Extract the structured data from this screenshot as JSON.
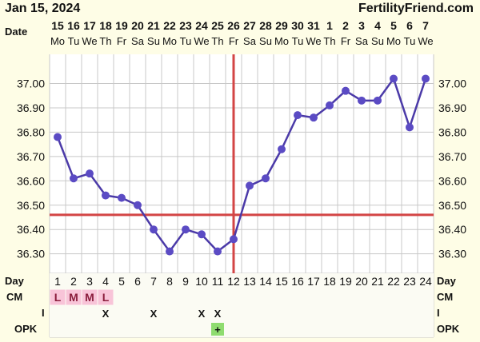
{
  "header": {
    "date": "Jan 15, 2024",
    "brand": "FertilityFriend.com"
  },
  "row_labels": {
    "date": "Date",
    "day": "Day",
    "cm": "CM",
    "i": "I",
    "opk": "OPK"
  },
  "colors": {
    "background": "#fefde6",
    "grid": "#c8c8c8",
    "line": "#4b3aa8",
    "point": "#5b4bc4",
    "coverline": "#d34545",
    "ovulation_line": "#d34545",
    "cm_cell": "#f8c4d8",
    "opk_positive": "#8fdc6f"
  },
  "chart_data": {
    "type": "line",
    "title": "",
    "xlabel": "",
    "ylabel": "",
    "ylim": [
      36.22,
      37.12
    ],
    "y_ticks": [
      "37.00",
      "36.90",
      "36.80",
      "36.70",
      "36.60",
      "36.50",
      "36.40",
      "36.30"
    ],
    "x_dates": [
      "15",
      "16",
      "17",
      "18",
      "19",
      "20",
      "21",
      "22",
      "23",
      "24",
      "25",
      "26",
      "27",
      "28",
      "29",
      "30",
      "31",
      "1",
      "2",
      "3",
      "4",
      "5",
      "6",
      "7"
    ],
    "x_weekdays": [
      "Mo",
      "Tu",
      "We",
      "Th",
      "Fr",
      "Sa",
      "Su",
      "Mo",
      "Tu",
      "We",
      "Th",
      "Fr",
      "Sa",
      "Su",
      "Mo",
      "Tu",
      "We",
      "Th",
      "Fr",
      "Sa",
      "Su",
      "Mo",
      "Tu",
      "We"
    ],
    "cycle_days": [
      1,
      2,
      3,
      4,
      5,
      6,
      7,
      8,
      9,
      10,
      11,
      12,
      13,
      14,
      15,
      16,
      17,
      18,
      19,
      20,
      21,
      22,
      23,
      24
    ],
    "temperatures": [
      36.78,
      36.61,
      36.63,
      36.54,
      36.53,
      36.5,
      36.4,
      36.31,
      36.4,
      36.38,
      36.31,
      36.36,
      36.58,
      36.61,
      36.73,
      36.87,
      36.86,
      36.91,
      36.97,
      36.93,
      36.93,
      37.02,
      36.82,
      37.02
    ],
    "coverline": 36.46,
    "ovulation_day": 12,
    "grid": true,
    "cm": [
      "L",
      "M",
      "M",
      "L",
      "",
      "",
      "",
      "",
      "",
      "",
      "",
      "",
      "",
      "",
      "",
      "",
      "",
      "",
      "",
      "",
      "",
      "",
      "",
      ""
    ],
    "intercourse": [
      "",
      "",
      "",
      "X",
      "",
      "",
      "X",
      "",
      "",
      "X",
      "X",
      "",
      "",
      "",
      "",
      "",
      "",
      "",
      "",
      "",
      "",
      "",
      "",
      ""
    ],
    "opk": [
      "",
      "",
      "",
      "",
      "",
      "",
      "",
      "",
      "",
      "",
      "+",
      "",
      "",
      "",
      "",
      "",
      "",
      "",
      "",
      "",
      "",
      "",
      "",
      ""
    ]
  }
}
